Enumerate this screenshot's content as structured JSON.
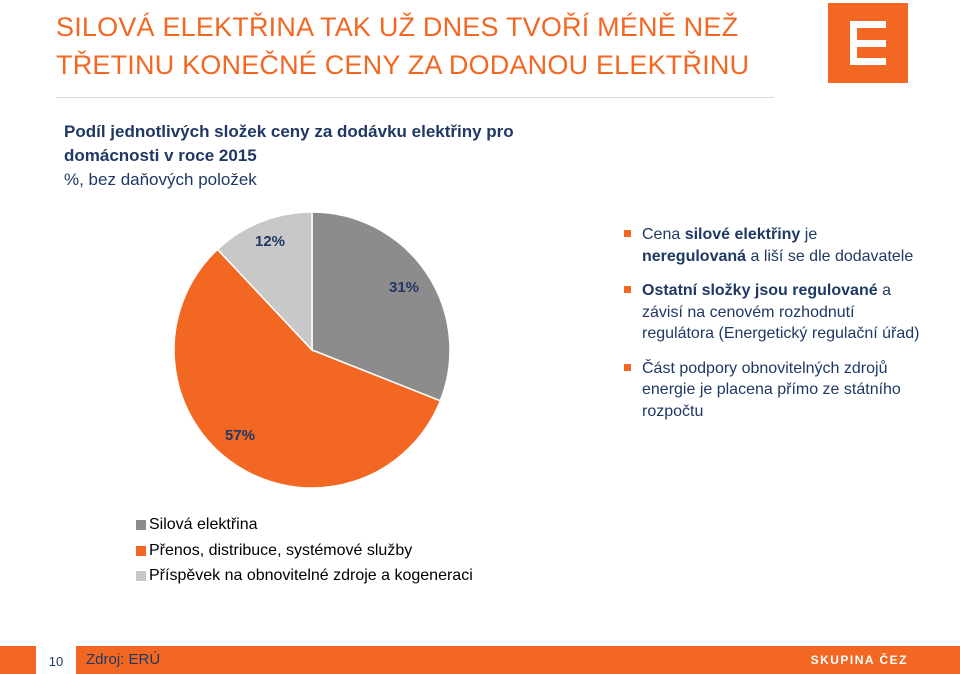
{
  "header": {
    "title_line1": "SILOVÁ ELEKTŘINA TAK UŽ DNES TVOŘÍ MÉNĚ NEŽ",
    "title_line2": "TŘETINU KONEČNÉ CENY ZA DODANOU ELEKTŘINU",
    "logo_icon": "cez-logo-icon"
  },
  "subtitle": {
    "line1": "Podíl jednotlivých složek ceny za dodávku elektřiny pro",
    "line2": "domácnosti v roce 2015",
    "line3": "%, bez daňových položek"
  },
  "chart_data": {
    "type": "pie",
    "series": [
      {
        "name": "Silová elektřina",
        "value": 31,
        "label": "31%",
        "color": "#8c8c8c"
      },
      {
        "name": "Přenos, distribuce, systémové služby",
        "value": 57,
        "label": "57%",
        "color": "#f26722"
      },
      {
        "name": "Příspěvek na obnovitelné zdroje a kogeneraci",
        "value": 12,
        "label": "12%",
        "color": "#c8c8c8"
      }
    ],
    "legend_position": "bottom-left"
  },
  "bullets": [
    {
      "parts": [
        {
          "text": "Cena ",
          "bold": false
        },
        {
          "text": "silové elektřiny",
          "bold": true
        },
        {
          "text": " je ",
          "bold": false
        },
        {
          "text": "neregulovaná",
          "bold": true
        },
        {
          "text": " a liší se dle dodavatele",
          "bold": false
        }
      ]
    },
    {
      "parts": [
        {
          "text": "Ostatní složky jsou regulované",
          "bold": true
        },
        {
          "text": " a závisí na cenovém rozhodnutí regulátora (Energetický regulační úřad)",
          "bold": false
        }
      ]
    },
    {
      "parts": [
        {
          "text": "Část podpory obnovitelných zdrojů energie je placena přímo ze státního rozpočtu",
          "bold": false
        }
      ]
    }
  ],
  "footer": {
    "page_number": "10",
    "source": "Zdroj: ERÚ",
    "brand": "SKUPINA ČEZ",
    "color": "#f26722"
  }
}
